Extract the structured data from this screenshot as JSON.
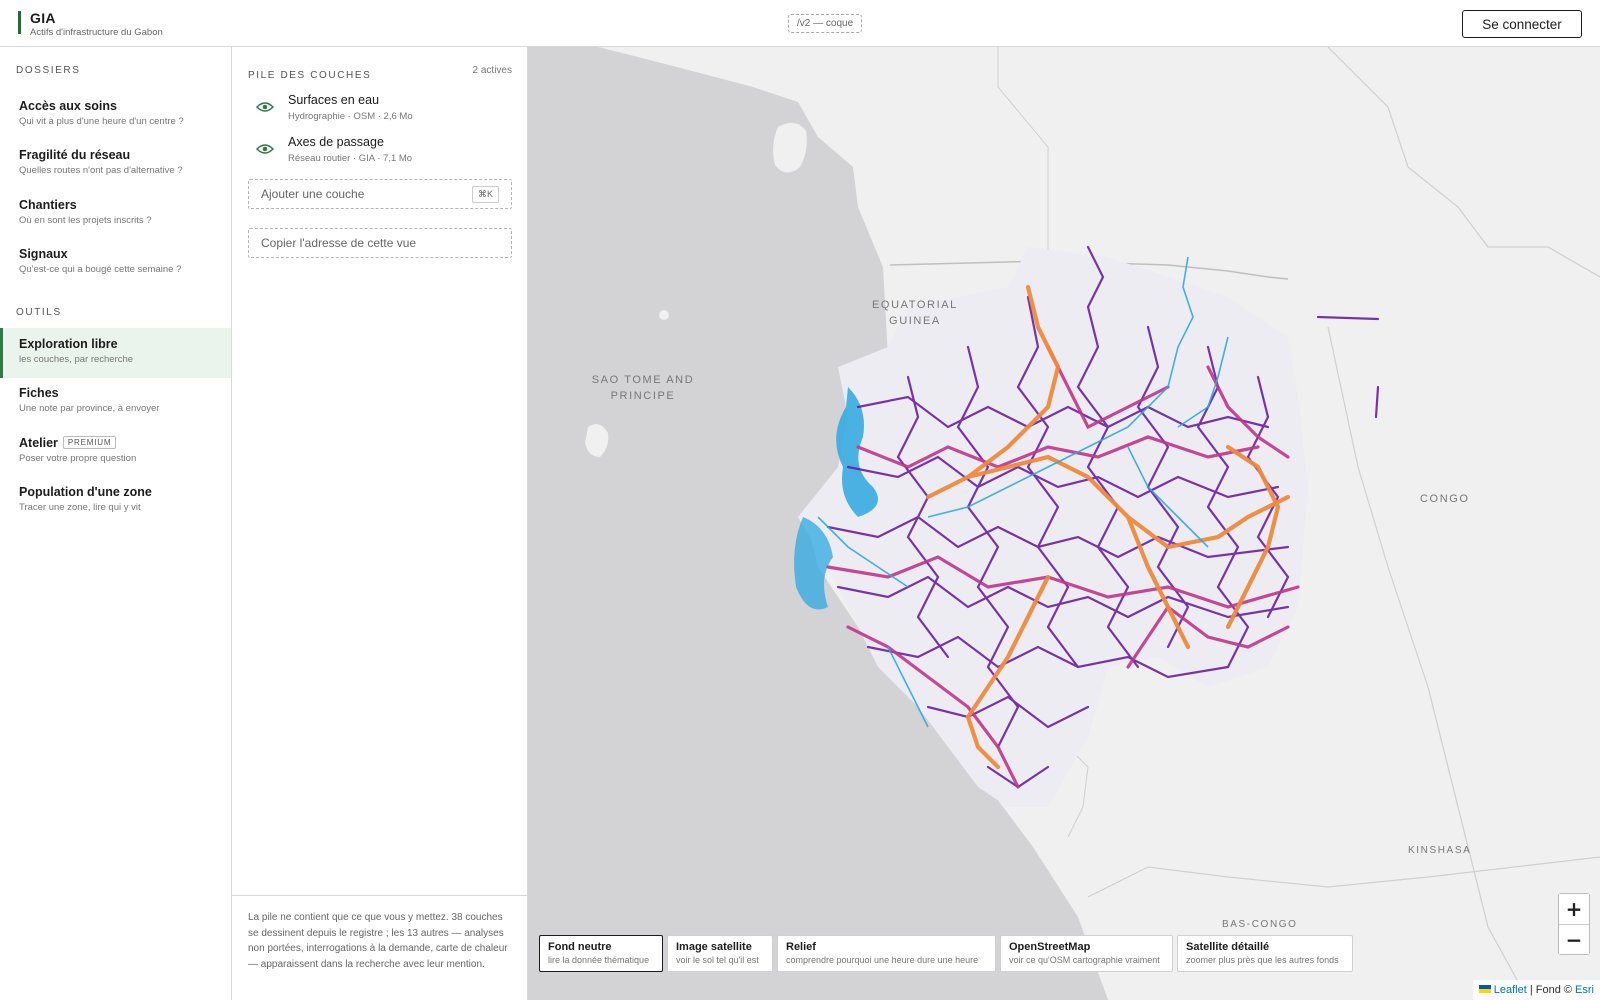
{
  "header": {
    "title": "GIA",
    "subtitle": "Actifs d'infrastructure du Gabon",
    "version": "/v2 — coque",
    "login_label": "Se connecter"
  },
  "sidebar": {
    "dossiers_label": "DOSSIERS",
    "outils_label": "OUTILS",
    "dossiers": [
      {
        "title": "Accès aux soins",
        "subtitle": "Qui vit à plus d'une heure d'un centre ?"
      },
      {
        "title": "Fragilité du réseau",
        "subtitle": "Quelles routes n'ont pas d'alternative ?"
      },
      {
        "title": "Chantiers",
        "subtitle": "Où en sont les projets inscrits ?"
      },
      {
        "title": "Signaux",
        "subtitle": "Qu'est-ce qui a bougé cette semaine ?"
      }
    ],
    "outils": [
      {
        "title": "Exploration libre",
        "subtitle": "les couches, par recherche"
      },
      {
        "title": "Fiches",
        "subtitle": "Une note par province, à envoyer"
      },
      {
        "title": "Atelier",
        "badge": "PREMIUM",
        "subtitle": "Poser votre propre question"
      },
      {
        "title": "Population d'une zone",
        "subtitle": "Tracer une zone, lire qui y vit"
      }
    ]
  },
  "panel": {
    "title": "PILE DES COUCHES",
    "count": "2 actives",
    "layers": [
      {
        "name": "Surfaces en eau",
        "meta": "Hydrographie · OSM · 2,6 Mo"
      },
      {
        "name": "Axes de passage",
        "meta": "Réseau routier · GIA · 7,1 Mo"
      }
    ],
    "add_layer_placeholder": "Ajouter une couche",
    "add_layer_shortcut": "⌘K",
    "copy_link_label": "Copier l'adresse de cette vue",
    "footer_note": "La pile ne contient que ce que vous y mettez. 38 couches se dessinent depuis le registre ; les 13 autres — analyses non portées, interrogations à la demande, carte de chaleur — apparaissent dans la recherche avec leur mention."
  },
  "map": {
    "labels": {
      "equatorial_guinea": "EQUATORIAL GUINEA",
      "sao_tome": "SAO TOME AND PRINCIPE",
      "congo": "CONGO",
      "kinshasa": "KINSHASA",
      "bas_congo": "BAS-CONGO"
    },
    "zoom_in": "+",
    "zoom_out": "−",
    "basemaps": [
      {
        "title": "Fond neutre",
        "subtitle": "lire la donnée thématique",
        "active": true
      },
      {
        "title": "Image satellite",
        "subtitle": "voir le sol tel qu'il est"
      },
      {
        "title": "Relief",
        "subtitle": "comprendre pourquoi une heure dure une heure"
      },
      {
        "title": "OpenStreetMap",
        "subtitle": "voir ce qu'OSM cartographie vraiment"
      },
      {
        "title": "Satellite détaillé",
        "subtitle": "zoomer plus près que les autres fonds"
      }
    ],
    "attribution": {
      "leaflet": "Leaflet",
      "separator": " | Fond © ",
      "esri": "Esri"
    },
    "colors": {
      "ocean": "#d3d3d6",
      "land": "#f0f0f0",
      "water": "#2ea8e0",
      "road_major": "#f08a3c",
      "road_mid": "#c2358a",
      "road_minor": "#6a1ea8"
    }
  }
}
